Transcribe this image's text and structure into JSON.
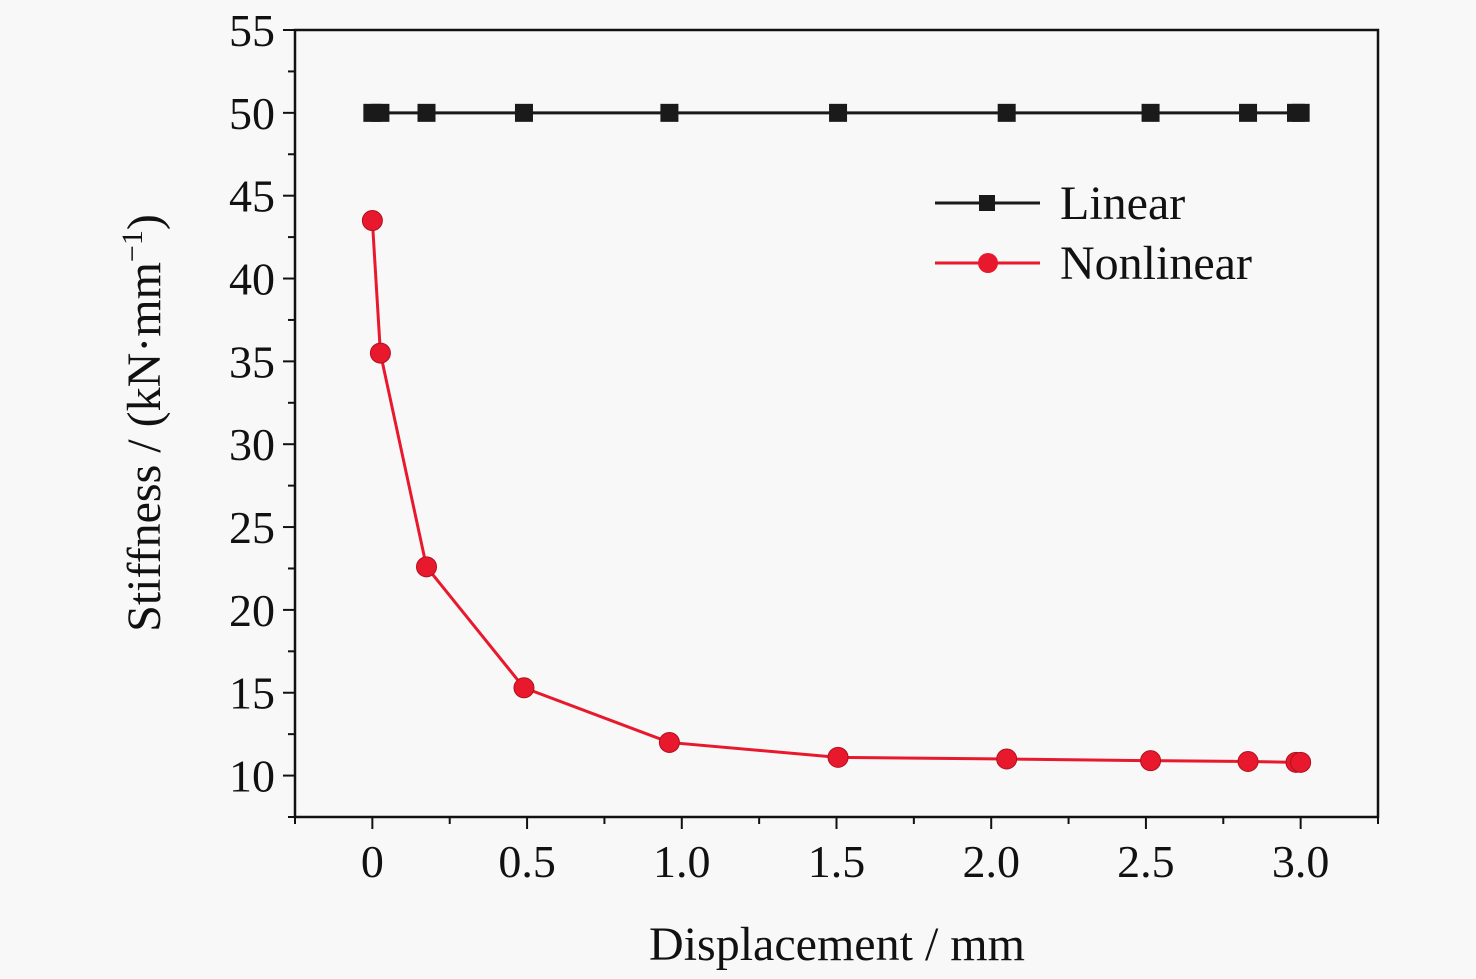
{
  "chart_data": {
    "type": "line",
    "xlabel": "Displacement / mm",
    "ylabel": "Stiffness / (kN·mm",
    "ylabel_superscript": "−1",
    "ylabel_close": ")",
    "xlim": [
      -0.25,
      3.25
    ],
    "ylim": [
      7.5,
      55
    ],
    "xticks": [
      0,
      0.5,
      1.0,
      1.5,
      2.0,
      2.5,
      3.0
    ],
    "xtick_labels": [
      "0",
      "0.5",
      "1.0",
      "1.5",
      "2.0",
      "2.5",
      "3.0"
    ],
    "yticks": [
      10,
      15,
      20,
      25,
      30,
      35,
      40,
      45,
      50,
      55
    ],
    "ytick_labels": [
      "10",
      "15",
      "20",
      "25",
      "30",
      "35",
      "40",
      "45",
      "50",
      "55"
    ],
    "grid": false,
    "legend_position": "top-right",
    "x": [
      0,
      0.026,
      0.175,
      0.49,
      0.96,
      1.505,
      2.05,
      2.515,
      2.83,
      2.985,
      3.0
    ],
    "series": [
      {
        "name": "Linear",
        "color": "#1a1a1a",
        "marker": "square",
        "values": [
          50,
          50,
          50,
          50,
          50,
          50,
          50,
          50,
          50,
          50,
          50
        ]
      },
      {
        "name": "Nonlinear",
        "color": "#e8192c",
        "marker": "circle",
        "values": [
          43.5,
          35.5,
          22.6,
          15.3,
          12.0,
          11.1,
          11.0,
          10.9,
          10.85,
          10.8,
          10.8
        ]
      }
    ]
  }
}
